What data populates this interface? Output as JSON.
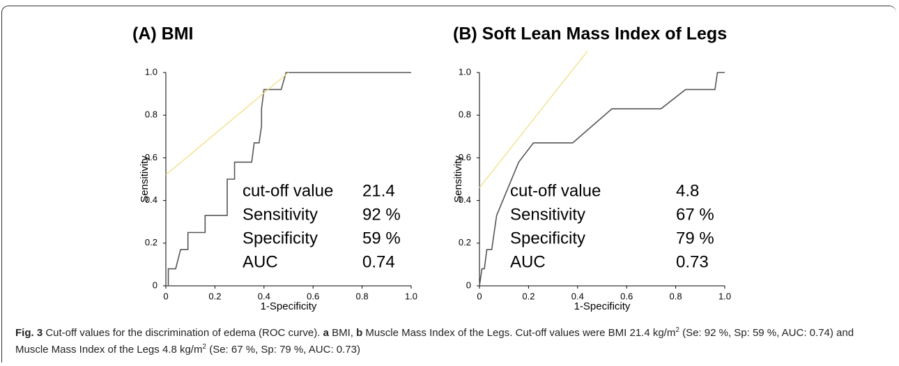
{
  "chart_data": [
    {
      "type": "line",
      "title": "(A) BMI",
      "xlabel": "1-Specificity",
      "ylabel": "Sensitivity",
      "xlim": [
        0,
        1
      ],
      "ylim": [
        0,
        1
      ],
      "xticks": [
        0,
        0.2,
        0.4,
        0.6,
        0.8,
        {
          "value": 1,
          "label": "1.0"
        }
      ],
      "yticks": [
        0,
        0.2,
        0.4,
        0.6,
        0.8,
        {
          "value": 1,
          "label": "1.0"
        }
      ],
      "series": [
        {
          "color": "#555555",
          "x": [
            0,
            0.01,
            0.01,
            0.04,
            0.06,
            0.09,
            0.09,
            0.16,
            0.16,
            0.25,
            0.25,
            0.28,
            0.28,
            0.35,
            0.36,
            0.38,
            0.39,
            0.39,
            0.4,
            0.47,
            0.49,
            1.0
          ],
          "values": [
            0,
            0,
            0.08,
            0.08,
            0.17,
            0.17,
            0.25,
            0.25,
            0.33,
            0.33,
            0.5,
            0.5,
            0.58,
            0.58,
            0.67,
            0.67,
            0.75,
            0.83,
            0.92,
            0.92,
            1.0,
            1.0
          ]
        },
        {
          "color": "#f2e28a",
          "x": [
            0,
            0.5
          ],
          "values": [
            0.52,
            1.0
          ]
        }
      ],
      "annotations": [
        [
          "cut-off value",
          "21.4"
        ],
        [
          "Sensitivity",
          "92 %"
        ],
        [
          "Specificity",
          "59 %"
        ],
        [
          "AUC",
          "0.74"
        ]
      ]
    },
    {
      "type": "line",
      "title": "(B) Soft Lean Mass Index of Legs",
      "xlabel": "1-Specificity",
      "ylabel": "Sensitivity",
      "xlim": [
        0,
        1
      ],
      "ylim": [
        0,
        1
      ],
      "xticks": [
        0,
        0.2,
        0.4,
        0.6,
        0.8,
        {
          "value": 1,
          "label": "1.0"
        }
      ],
      "yticks": [
        0,
        0.2,
        0.4,
        0.6,
        0.8,
        {
          "value": 1,
          "label": "1.0"
        }
      ],
      "series": [
        {
          "color": "#555555",
          "x": [
            0,
            0.01,
            0.02,
            0.03,
            0.05,
            0.07,
            0.16,
            0.22,
            0.38,
            0.46,
            0.54,
            0.74,
            0.84,
            0.96,
            0.97,
            1.0
          ],
          "values": [
            0,
            0.08,
            0.08,
            0.17,
            0.17,
            0.33,
            0.58,
            0.67,
            0.67,
            0.75,
            0.83,
            0.83,
            0.92,
            0.92,
            1.0,
            1.0
          ]
        },
        {
          "color": "#f2e28a",
          "x": [
            0,
            0.44
          ],
          "values": [
            0.46,
            1.1
          ]
        }
      ],
      "annotations": [
        [
          "cut-off value",
          "4.8"
        ],
        [
          "Sensitivity",
          "67 %"
        ],
        [
          "Specificity",
          "79 %"
        ],
        [
          "AUC",
          "0.73"
        ]
      ]
    }
  ],
  "caption": [
    {
      "text": "Fig. 3",
      "style": "bold"
    },
    {
      "text": " Cut-off values for the discrimination of edema (ROC curve). ",
      "style": "normal"
    },
    {
      "text": "a",
      "style": "bold"
    },
    {
      "text": " BMI, ",
      "style": "normal"
    },
    {
      "text": "b",
      "style": "bold"
    },
    {
      "text": " Muscle Mass Index of the Legs. Cut-off values were BMI 21.4 kg/m",
      "style": "normal"
    },
    {
      "text": "2",
      "style": "sup"
    },
    {
      "text": " (Se: 92 %, Sp: 59 %, AUC: 0.74) and Muscle Mass Index of the Legs 4.8 kg/m",
      "style": "normal"
    },
    {
      "text": "2",
      "style": "sup"
    },
    {
      "text": " (Se: 67 %, Sp: 79 %, AUC: 0.73)",
      "style": "normal"
    }
  ]
}
